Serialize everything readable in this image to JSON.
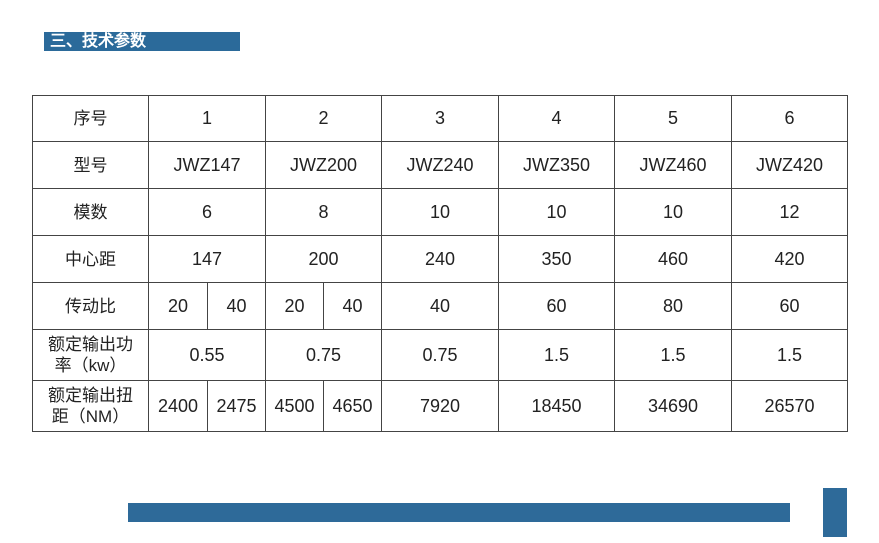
{
  "header": {
    "title": "三、技术参数"
  },
  "table": {
    "rows": [
      {
        "label": [
          "序号"
        ],
        "cells": [
          "1",
          "2",
          "3",
          "4",
          "5",
          "6"
        ]
      },
      {
        "label": [
          "型号"
        ],
        "cells": [
          "JWZ147",
          "JWZ200",
          "JWZ240",
          "JWZ350",
          "JWZ460",
          "JWZ420"
        ]
      },
      {
        "label": [
          "模数"
        ],
        "cells": [
          "6",
          "8",
          "10",
          "10",
          "10",
          "12"
        ]
      },
      {
        "label": [
          "中心距"
        ],
        "cells": [
          "147",
          "200",
          "240",
          "350",
          "460",
          "420"
        ]
      },
      {
        "label": [
          "传动比"
        ],
        "cells": [
          [
            "20",
            "40"
          ],
          [
            "20",
            "40"
          ],
          "40",
          "60",
          "80",
          "60"
        ]
      },
      {
        "label": [
          "额定输出功",
          "率（kw）"
        ],
        "cells": [
          "0.55",
          "0.75",
          "0.75",
          "1.5",
          "1.5",
          "1.5"
        ]
      },
      {
        "label": [
          "额定输出扭",
          "距（NM）"
        ],
        "cells": [
          [
            "2400",
            "2475"
          ],
          [
            "4500",
            "4650"
          ],
          "7920",
          "18450",
          "34690",
          "26570"
        ]
      }
    ]
  }
}
